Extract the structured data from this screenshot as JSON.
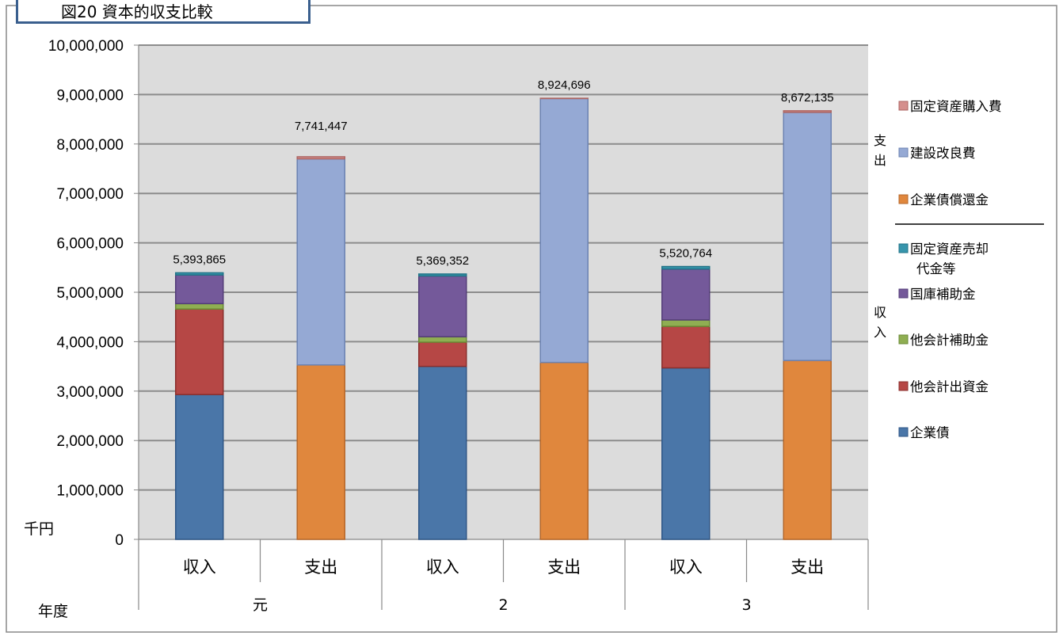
{
  "title": "図20 資本的収支比較",
  "chart_data": {
    "type": "bar",
    "stacked": true,
    "unit_label": "千円",
    "x_group_label": "年度",
    "ylim": [
      0,
      10000000
    ],
    "y_ticks": [
      "10,000,000",
      "9,000,000",
      "8,000,000",
      "7,000,000",
      "6,000,000",
      "5,000,000",
      "4,000,000",
      "3,000,000",
      "2,000,000",
      "1,000,000",
      "0"
    ],
    "y_tick_values": [
      10000000,
      9000000,
      8000000,
      7000000,
      6000000,
      5000000,
      4000000,
      3000000,
      2000000,
      1000000,
      0
    ],
    "grid": true,
    "groups": [
      "元",
      "2",
      "3"
    ],
    "categories": [
      "収入",
      "支出",
      "収入",
      "支出",
      "収入",
      "支出"
    ],
    "totals": [
      "5,393,865",
      "7,741,447",
      "5,369,352",
      "8,924,696",
      "5,520,764",
      "8,672,135"
    ],
    "series": [
      {
        "name": "企業債",
        "color": "#4a76a8",
        "border": "#2f5686",
        "values": [
          2930000,
          0,
          3500000,
          0,
          3470000,
          0
        ]
      },
      {
        "name": "他会計出資金",
        "color": "#b64745",
        "border": "#8a2f2d",
        "values": [
          1730000,
          0,
          490000,
          0,
          840000,
          0
        ]
      },
      {
        "name": "他会計補助金",
        "color": "#8fae52",
        "border": "#6a8a35",
        "values": [
          110000,
          0,
          110000,
          0,
          130000,
          0
        ]
      },
      {
        "name": "国庫補助金",
        "color": "#74599a",
        "border": "#533d78",
        "values": [
          580000,
          0,
          1230000,
          0,
          1030000,
          0
        ]
      },
      {
        "name": "固定資産売却代金等",
        "color": "#3795ac",
        "border": "#217387",
        "values": [
          43865,
          0,
          39352,
          0,
          50764,
          0
        ]
      },
      {
        "name": "企業債償還金",
        "color": "#e0873d",
        "border": "#b5672a",
        "values": [
          0,
          3530000,
          0,
          3580000,
          0,
          3620000
        ]
      },
      {
        "name": "建設改良費",
        "color": "#95a9d4",
        "border": "#6b82b2",
        "values": [
          0,
          4170000,
          0,
          5340000,
          0,
          5020000
        ]
      },
      {
        "name": "固定資産購入費",
        "color": "#d58f8d",
        "border": "#ac6563",
        "values": [
          0,
          41447,
          0,
          4696,
          0,
          32135
        ]
      }
    ],
    "legend": {
      "position": "right",
      "expense_group_label": [
        "支",
        "出"
      ],
      "income_group_label": [
        "収",
        "入"
      ],
      "expense_items": [
        {
          "label": "固定資産購入費",
          "series": 7
        },
        {
          "label": "建設改良費",
          "series": 6
        },
        {
          "label": "企業債償還金",
          "series": 5
        }
      ],
      "income_items": [
        {
          "label": [
            "固定資産売却",
            "代金等"
          ],
          "series": 4
        },
        {
          "label": "国庫補助金",
          "series": 3
        },
        {
          "label": "他会計補助金",
          "series": 2
        },
        {
          "label": "他会計出資金",
          "series": 1
        },
        {
          "label": "企業債",
          "series": 0
        }
      ]
    }
  }
}
